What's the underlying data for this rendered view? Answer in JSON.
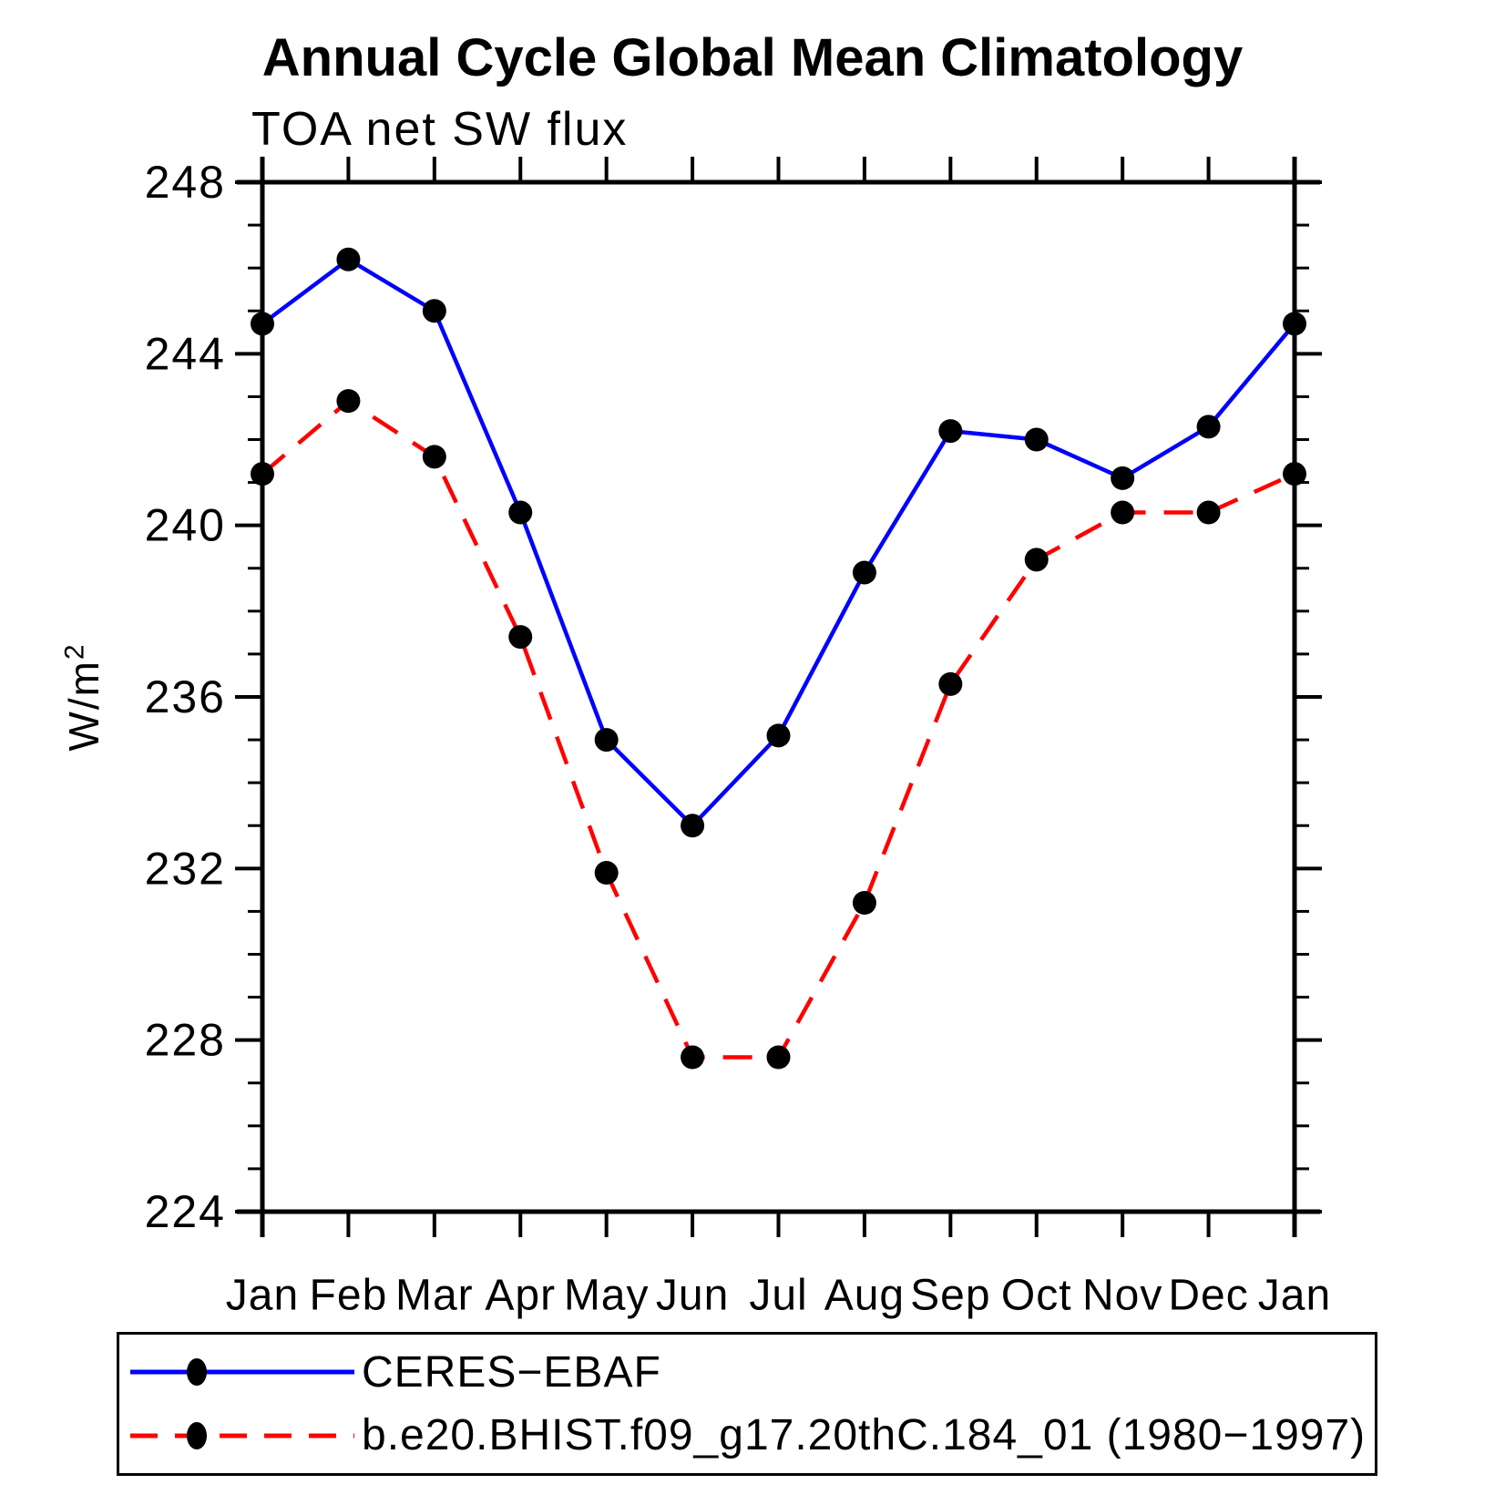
{
  "title": "Annual Cycle Global Mean Climatology",
  "subtitle": "TOA net SW flux",
  "y_axis": {
    "label_base": "W/m",
    "label_exponent": "2"
  },
  "colors": {
    "obs_line": "#0000ff",
    "model_line": "#ff0000",
    "marker": "#000000",
    "axis": "#000000",
    "background": "#ffffff"
  },
  "legend": [
    {
      "label": "CERES−EBAF",
      "color": "#0000ff",
      "line_style": "solid",
      "marker": "filled-circle"
    },
    {
      "label": "b.e20.BHIST.f09_g17.20thC.184_01 (1980−1997)",
      "color": "#ff0000",
      "line_style": "dashed",
      "marker": "filled-circle"
    }
  ],
  "chart_data": {
    "type": "line",
    "title": "Annual Cycle Global Mean Climatology",
    "subtitle": "TOA net SW flux",
    "xlabel": "",
    "ylabel": "W/m2",
    "categories": [
      "Jan",
      "Feb",
      "Mar",
      "Apr",
      "May",
      "Jun",
      "Jul",
      "Aug",
      "Sep",
      "Oct",
      "Nov",
      "Dec",
      "Jan"
    ],
    "series": [
      {
        "name": "CERES−EBAF",
        "color": "#0000ff",
        "line_style": "solid",
        "marker": "filled-circle",
        "values": [
          244.7,
          246.2,
          245.0,
          240.3,
          235.0,
          233.0,
          235.1,
          238.9,
          242.2,
          242.0,
          241.1,
          242.3,
          244.7
        ]
      },
      {
        "name": "b.e20.BHIST.f09_g17.20thC.184_01 (1980−1997)",
        "color": "#ff0000",
        "line_style": "dashed",
        "marker": "filled-circle",
        "values": [
          241.2,
          242.9,
          241.6,
          237.4,
          231.9,
          227.6,
          227.6,
          231.2,
          236.3,
          239.2,
          240.3,
          240.3,
          241.2
        ]
      }
    ],
    "ylim": [
      224,
      248
    ],
    "y_major_step": 4,
    "y_minor_step": 1,
    "y_major_ticks": [
      224,
      228,
      232,
      236,
      240,
      244,
      248
    ],
    "grid": false,
    "legend_position": "bottom"
  }
}
